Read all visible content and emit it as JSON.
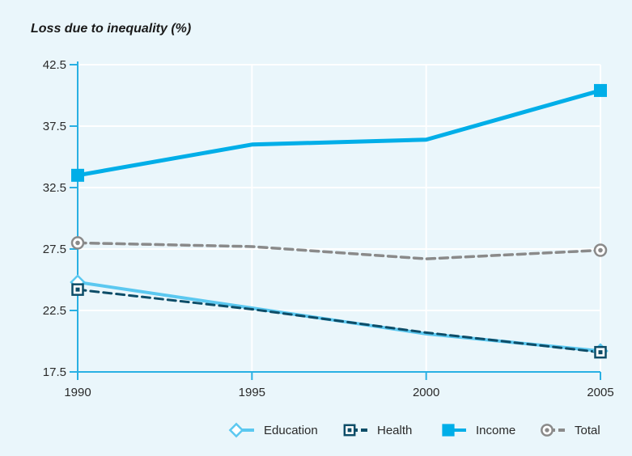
{
  "chart_data": {
    "type": "line",
    "title": "Loss due to inequality (%)",
    "x": [
      1990,
      1995,
      2000,
      2005
    ],
    "xticks": [
      "1990",
      "1995",
      "2000",
      "2005"
    ],
    "ylim": [
      17.5,
      42.5
    ],
    "yticks": [
      "17.5",
      "22.5",
      "27.5",
      "32.5",
      "37.5",
      "42.5"
    ],
    "grid": true,
    "legend_position": "bottom-right",
    "series": [
      {
        "name": "Education",
        "values": [
          24.8,
          22.7,
          20.6,
          19.2
        ],
        "color": "#5bc8f0",
        "dash": "solid",
        "marker": "hollow-diamond"
      },
      {
        "name": "Health",
        "values": [
          24.2,
          22.6,
          20.7,
          19.1
        ],
        "color": "#0d4d68",
        "dash": "dashed",
        "marker": "hollow-square"
      },
      {
        "name": "Income",
        "values": [
          33.5,
          36.0,
          36.4,
          40.4
        ],
        "color": "#00aee8",
        "dash": "solid",
        "marker": "filled-square"
      },
      {
        "name": "Total",
        "values": [
          28.0,
          27.7,
          26.7,
          27.4
        ],
        "color": "#8a8a8a",
        "dash": "dashed",
        "marker": "ring"
      }
    ]
  }
}
